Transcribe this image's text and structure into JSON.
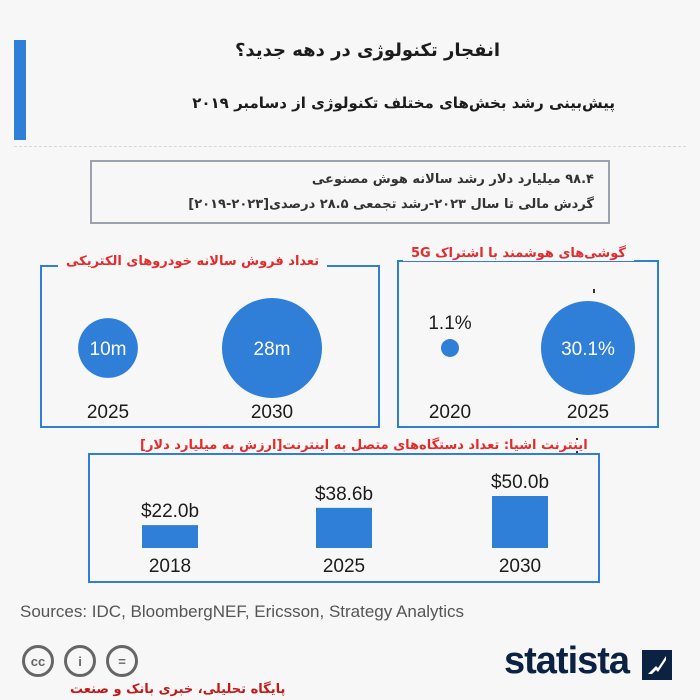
{
  "header": {
    "title": "انفجار تکنولوژی در  دهه جدید؟",
    "subtitle": "پیش‌بینی رشد بخش‌های مختلف تکنولوژی از دسامبر ۲۰۱۹"
  },
  "info": {
    "line1": "۹۸.۴ میلیارد دلار رشد سالانه هوش مصنوعی",
    "line2": "گردش مالی تا سال ۲۰۲۳-رشد تجمعی ۲۸.۵ درصدی[۲۰۲۳-۲۰۱۹]"
  },
  "panels": {
    "ev_title": "تعداد فروش سالانه خودروهای الکتریکی",
    "phones_title": "گوشی‌های هوشمند با اشتراک 5G",
    "iot_title": "اینترنت اشیا: تعداد دستگاه‌های متصل به اینترنت[ارزش به میلیارد دلار]"
  },
  "chart_data": [
    {
      "type": "bubble",
      "title": "تعداد فروش سالانه خودروهای الکتریکی",
      "categories": [
        "2025",
        "2030"
      ],
      "values": [
        10,
        28
      ],
      "labels": [
        "10m",
        "28m"
      ],
      "unit": "million"
    },
    {
      "type": "bubble",
      "title": "گوشی‌های هوشمند با اشتراک 5G",
      "categories": [
        "2020",
        "2025"
      ],
      "values": [
        1.1,
        30.1
      ],
      "labels": [
        "1.1%",
        "30.1%"
      ],
      "unit": "percent"
    },
    {
      "type": "bar",
      "title": "اینترنت اشیا: تعداد دستگاه‌های متصل به اینترنت[ارزش به میلیارد دلار]",
      "categories": [
        "2018",
        "2025",
        "2030"
      ],
      "values": [
        22.0,
        38.6,
        50.0
      ],
      "labels": [
        "$22.0b",
        "$38.6b",
        "$50.0b"
      ],
      "unit": "billion USD"
    }
  ],
  "colors": {
    "accent": "#2f7ed8",
    "highlight": "#e32b2b",
    "brand": "#0b2242"
  },
  "footer": {
    "sources": "Sources: IDC, BloombergNEF, Ericsson, Strategy Analytics",
    "brand": "statista",
    "watermark": "پایگاه تحلیلی، خبری بانک و صنعت",
    "license_icons": [
      "cc",
      "i",
      "="
    ]
  }
}
